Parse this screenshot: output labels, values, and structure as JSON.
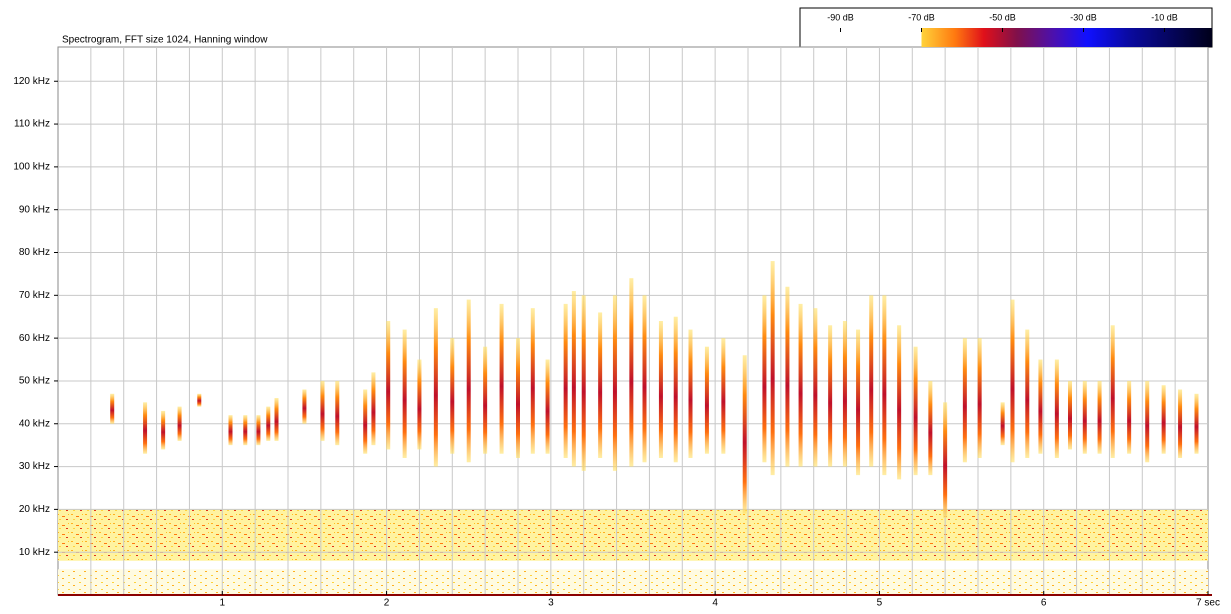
{
  "chart_data": {
    "type": "spectrogram",
    "title": "Spectrogram, FFT size 1024, Hanning window",
    "xlim": [
      0,
      7
    ],
    "xticks": [
      1,
      2,
      3,
      4,
      5,
      6,
      {
        "value": 7,
        "label": "7 sec"
      }
    ],
    "xgrid": [
      0.2,
      0.4,
      0.6,
      0.8,
      1,
      1.2,
      1.4,
      1.6,
      1.8,
      2,
      2.2,
      2.4,
      2.6,
      2.8,
      3,
      3.2,
      3.4,
      3.6,
      3.8,
      4,
      4.2,
      4.4,
      4.6,
      4.8,
      5,
      5.2,
      5.4,
      5.6,
      5.8,
      6,
      6.2,
      6.4,
      6.6,
      6.8
    ],
    "ylim": [
      0,
      128
    ],
    "yticks": [
      {
        "value": 10,
        "label": "10 kHz"
      },
      {
        "value": 20,
        "label": "20 kHz"
      },
      {
        "value": 30,
        "label": "30 kHz"
      },
      {
        "value": 40,
        "label": "40 kHz"
      },
      {
        "value": 50,
        "label": "50 kHz"
      },
      {
        "value": 60,
        "label": "60 kHz"
      },
      {
        "value": 70,
        "label": "70 kHz"
      },
      {
        "value": 80,
        "label": "80 kHz"
      },
      {
        "value": 90,
        "label": "90 kHz"
      },
      {
        "value": 100,
        "label": "100 kHz"
      },
      {
        "value": 110,
        "label": "110 kHz"
      },
      {
        "value": 120,
        "label": "120 kHz"
      }
    ],
    "grid": true,
    "colorbar": {
      "lim": [
        -100,
        0
      ],
      "ticks": [
        {
          "value": -90,
          "label": "-90 dB"
        },
        {
          "value": -70,
          "label": "-70 dB"
        },
        {
          "value": -50,
          "label": "-50 dB"
        },
        {
          "value": -30,
          "label": "-30 dB"
        },
        {
          "value": -10,
          "label": "-10 dB"
        }
      ],
      "stops": [
        {
          "value": -70,
          "color": "#ffd23a"
        },
        {
          "value": -62,
          "color": "#ff7a10"
        },
        {
          "value": -55,
          "color": "#e0101a"
        },
        {
          "value": -47,
          "color": "#80104a"
        },
        {
          "value": -38,
          "color": "#4a10b0"
        },
        {
          "value": -30,
          "color": "#1010ff"
        },
        {
          "value": -20,
          "color": "#0a0aa0"
        },
        {
          "value": 0,
          "color": "#00001a"
        }
      ]
    },
    "noise_bands": [
      {
        "f_low": 8,
        "f_high": 20
      },
      {
        "f_low": 0,
        "f_high": 6
      }
    ],
    "calls": [
      {
        "t": 0.33,
        "f_low": 40,
        "f_high": 47
      },
      {
        "t": 0.53,
        "f_low": 33,
        "f_high": 45
      },
      {
        "t": 0.64,
        "f_low": 34,
        "f_high": 43
      },
      {
        "t": 0.74,
        "f_low": 36,
        "f_high": 44
      },
      {
        "t": 0.86,
        "f_low": 44,
        "f_high": 47
      },
      {
        "t": 1.05,
        "f_low": 35,
        "f_high": 42
      },
      {
        "t": 1.14,
        "f_low": 35,
        "f_high": 42
      },
      {
        "t": 1.22,
        "f_low": 35,
        "f_high": 42
      },
      {
        "t": 1.28,
        "f_low": 36,
        "f_high": 44
      },
      {
        "t": 1.33,
        "f_low": 36,
        "f_high": 46
      },
      {
        "t": 1.5,
        "f_low": 40,
        "f_high": 48
      },
      {
        "t": 1.61,
        "f_low": 36,
        "f_high": 50
      },
      {
        "t": 1.7,
        "f_low": 35,
        "f_high": 50
      },
      {
        "t": 1.87,
        "f_low": 33,
        "f_high": 48
      },
      {
        "t": 1.92,
        "f_low": 35,
        "f_high": 52
      },
      {
        "t": 2.01,
        "f_low": 34,
        "f_high": 64
      },
      {
        "t": 2.11,
        "f_low": 32,
        "f_high": 62
      },
      {
        "t": 2.2,
        "f_low": 34,
        "f_high": 55
      },
      {
        "t": 2.3,
        "f_low": 30,
        "f_high": 67
      },
      {
        "t": 2.4,
        "f_low": 33,
        "f_high": 60
      },
      {
        "t": 2.5,
        "f_low": 31,
        "f_high": 69
      },
      {
        "t": 2.6,
        "f_low": 33,
        "f_high": 58
      },
      {
        "t": 2.7,
        "f_low": 33,
        "f_high": 68
      },
      {
        "t": 2.8,
        "f_low": 32,
        "f_high": 60
      },
      {
        "t": 2.89,
        "f_low": 33,
        "f_high": 67
      },
      {
        "t": 2.98,
        "f_low": 33,
        "f_high": 55
      },
      {
        "t": 3.09,
        "f_low": 32,
        "f_high": 68
      },
      {
        "t": 3.14,
        "f_low": 30,
        "f_high": 71
      },
      {
        "t": 3.2,
        "f_low": 29,
        "f_high": 70
      },
      {
        "t": 3.3,
        "f_low": 32,
        "f_high": 66
      },
      {
        "t": 3.39,
        "f_low": 29,
        "f_high": 70
      },
      {
        "t": 3.49,
        "f_low": 30,
        "f_high": 74
      },
      {
        "t": 3.57,
        "f_low": 31,
        "f_high": 70
      },
      {
        "t": 3.67,
        "f_low": 32,
        "f_high": 64
      },
      {
        "t": 3.76,
        "f_low": 31,
        "f_high": 65
      },
      {
        "t": 3.85,
        "f_low": 32,
        "f_high": 62
      },
      {
        "t": 3.95,
        "f_low": 33,
        "f_high": 58
      },
      {
        "t": 4.05,
        "f_low": 33,
        "f_high": 60
      },
      {
        "t": 4.18,
        "f_low": 19,
        "f_high": 56
      },
      {
        "t": 4.3,
        "f_low": 31,
        "f_high": 70
      },
      {
        "t": 4.35,
        "f_low": 28,
        "f_high": 78
      },
      {
        "t": 4.44,
        "f_low": 30,
        "f_high": 72
      },
      {
        "t": 4.52,
        "f_low": 30,
        "f_high": 68
      },
      {
        "t": 4.61,
        "f_low": 30,
        "f_high": 67
      },
      {
        "t": 4.7,
        "f_low": 30,
        "f_high": 63
      },
      {
        "t": 4.79,
        "f_low": 30,
        "f_high": 64
      },
      {
        "t": 4.87,
        "f_low": 28,
        "f_high": 62
      },
      {
        "t": 4.95,
        "f_low": 30,
        "f_high": 70
      },
      {
        "t": 5.03,
        "f_low": 28,
        "f_high": 70
      },
      {
        "t": 5.12,
        "f_low": 27,
        "f_high": 63
      },
      {
        "t": 5.22,
        "f_low": 28,
        "f_high": 58
      },
      {
        "t": 5.31,
        "f_low": 28,
        "f_high": 50
      },
      {
        "t": 5.4,
        "f_low": 18,
        "f_high": 45
      },
      {
        "t": 5.52,
        "f_low": 31,
        "f_high": 60
      },
      {
        "t": 5.61,
        "f_low": 32,
        "f_high": 60
      },
      {
        "t": 5.75,
        "f_low": 35,
        "f_high": 45
      },
      {
        "t": 5.81,
        "f_low": 31,
        "f_high": 69
      },
      {
        "t": 5.9,
        "f_low": 32,
        "f_high": 62
      },
      {
        "t": 5.98,
        "f_low": 33,
        "f_high": 55
      },
      {
        "t": 6.08,
        "f_low": 32,
        "f_high": 55
      },
      {
        "t": 6.16,
        "f_low": 34,
        "f_high": 50
      },
      {
        "t": 6.25,
        "f_low": 33,
        "f_high": 50
      },
      {
        "t": 6.34,
        "f_low": 33,
        "f_high": 50
      },
      {
        "t": 6.42,
        "f_low": 32,
        "f_high": 63
      },
      {
        "t": 6.52,
        "f_low": 33,
        "f_high": 50
      },
      {
        "t": 6.63,
        "f_low": 31,
        "f_high": 50
      },
      {
        "t": 6.73,
        "f_low": 33,
        "f_high": 49
      },
      {
        "t": 6.83,
        "f_low": 32,
        "f_high": 48
      },
      {
        "t": 6.93,
        "f_low": 33,
        "f_high": 47
      }
    ]
  }
}
